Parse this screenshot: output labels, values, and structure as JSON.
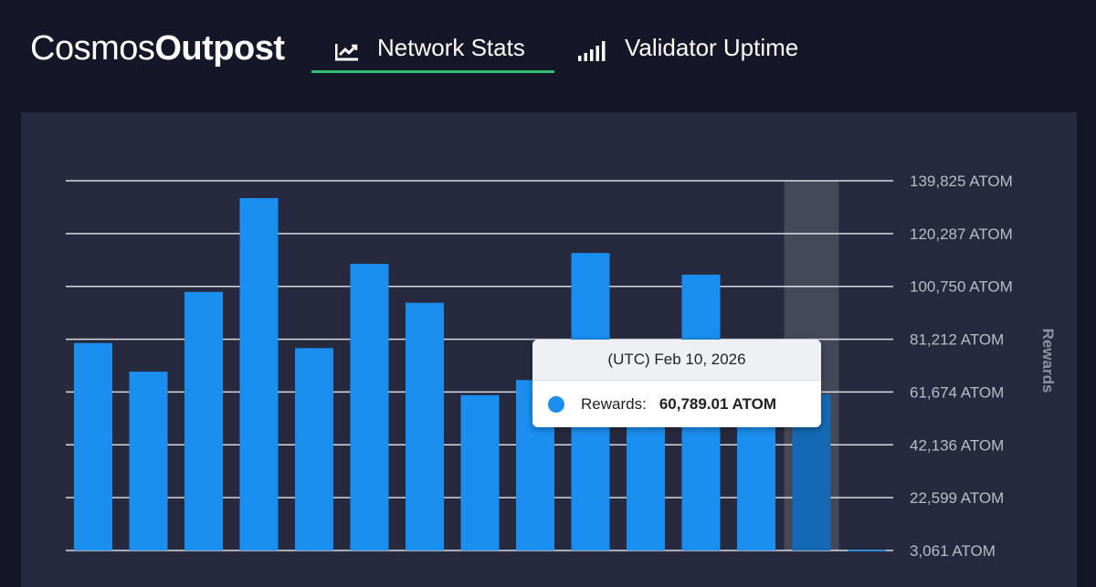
{
  "header": {
    "logo_light": "Cosmos",
    "logo_bold": "Outpost",
    "tabs": [
      {
        "label": "Network Stats",
        "icon": "trend-chart-icon",
        "active": true
      },
      {
        "label": "Validator Uptime",
        "icon": "signal-bars-icon",
        "active": false
      }
    ],
    "accent_color": "#2fbf71"
  },
  "tooltip": {
    "title": "(UTC) Feb 10, 2026",
    "series_label": "Rewards:",
    "value": "60,789.01 ATOM"
  },
  "chart_data": {
    "type": "bar",
    "title": "",
    "xlabel": "",
    "ylabel": "Rewards",
    "y_axis_position": "right",
    "ylim": [
      3061,
      139825
    ],
    "y_ticks": [
      "139,825 ATOM",
      "120,287 ATOM",
      "100,750 ATOM",
      "81,212 ATOM",
      "61,674 ATOM",
      "42,136 ATOM",
      "22,599 ATOM",
      "3,061 ATOM"
    ],
    "tick_values": [
      139825,
      120287,
      100750,
      81212,
      61674,
      42136,
      22599,
      3061
    ],
    "bar_color": "#1a8ff0",
    "highlight_color": "#1569b4",
    "highlighted_index": 13,
    "series": [
      {
        "name": "Rewards",
        "values": [
          79800,
          69200,
          98700,
          133400,
          77900,
          109100,
          94700,
          60500,
          66100,
          113100,
          60000,
          105100,
          60000,
          60789.01,
          3300
        ]
      }
    ]
  }
}
